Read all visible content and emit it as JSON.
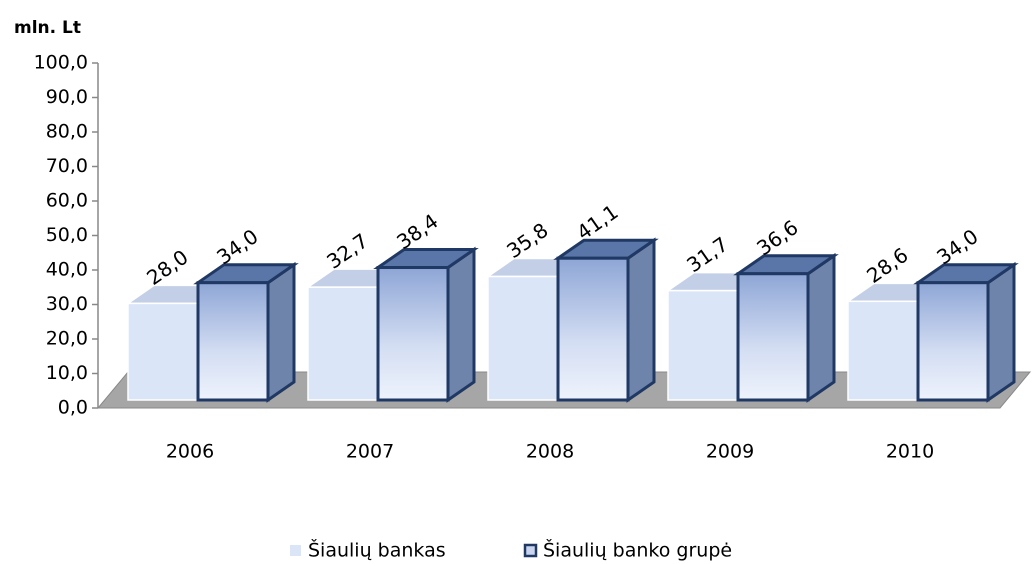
{
  "chart_data": {
    "type": "bar3d",
    "y_label": "mln. Lt",
    "categories": [
      "2006",
      "2007",
      "2008",
      "2009",
      "2010"
    ],
    "series": [
      {
        "name": "Šiaulių bankas",
        "color": "#dbe5f8",
        "values": [
          28.0,
          32.7,
          35.8,
          31.7,
          28.6
        ],
        "value_labels": [
          "28,0",
          "32,7",
          "35,8",
          "31,7",
          "28,6"
        ]
      },
      {
        "name": "Šiaulių banko grupė",
        "color": "#1f3864",
        "values": [
          34.0,
          38.4,
          41.1,
          36.6,
          34.0
        ],
        "value_labels": [
          "34,0",
          "38,4",
          "41,1",
          "36,6",
          "34,0"
        ]
      }
    ],
    "ylim": [
      0,
      100
    ],
    "yticks": [
      {
        "value": 0,
        "label": "0,0"
      },
      {
        "value": 10,
        "label": "10,0"
      },
      {
        "value": 20,
        "label": "20,0"
      },
      {
        "value": 30,
        "label": "30,0"
      },
      {
        "value": 40,
        "label": "40,0"
      },
      {
        "value": 50,
        "label": "50,0"
      },
      {
        "value": 60,
        "label": "60,0"
      },
      {
        "value": 70,
        "label": "70,0"
      },
      {
        "value": 80,
        "label": "80,0"
      },
      {
        "value": 90,
        "label": "90,0"
      },
      {
        "value": 100,
        "label": "100,0"
      }
    ],
    "grid": false,
    "legend": "bottom"
  }
}
